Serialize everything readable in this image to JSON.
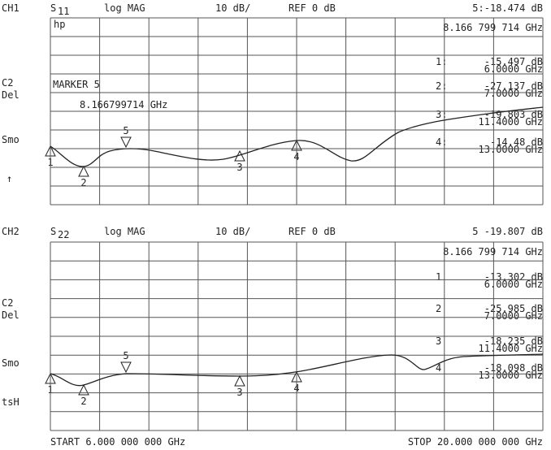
{
  "channels": [
    {
      "channel": "CH1",
      "param": "S",
      "param_sub": "11",
      "format": "log MAG",
      "scale": "10 dB/",
      "ref": "REF 0 dB",
      "active_marker": "5:-18.474 dB",
      "active_freq": "8.166 799 714 GHz",
      "logo": "hp",
      "side_labels": [
        "C2",
        "Del",
        "Smo",
        "↑"
      ],
      "marker_title": "MARKER 5",
      "marker_freq": "8.166799714 GHz",
      "readouts": [
        {
          "index": "1:",
          "value": "-15.497 dB",
          "freq": "6.0000 GHz"
        },
        {
          "index": "2:",
          "value": "-27.137 dB",
          "freq": "7.0000 GHz"
        },
        {
          "index": "3:",
          "value": "-19.803 dB",
          "freq": "11.4000 GHz"
        },
        {
          "index": "4:",
          "value": "-14.48 dB",
          "freq": "13.0000 GHz"
        }
      ],
      "trace_markers": [
        "1",
        "2",
        "3",
        "4",
        "5"
      ]
    },
    {
      "channel": "CH2",
      "param": "S",
      "param_sub": "22",
      "format": "log MAG",
      "scale": "10 dB/",
      "ref": "REF 0 dB",
      "active_marker": "5 -19.807 dB",
      "active_freq": "8.166 799 714 GHz",
      "side_labels": [
        "C2",
        "Del",
        "Smo",
        "tsH"
      ],
      "readouts": [
        {
          "index": "1",
          "value": "-13.302 dB",
          "freq": "6.0000 GHz"
        },
        {
          "index": "2",
          "value": "-25.985 dB",
          "freq": "7.0000 GHz"
        },
        {
          "index": "3",
          "value": "-18.235 dB",
          "freq": "11.4000 GHz"
        },
        {
          "index": "4",
          "value": "-18.098 dB",
          "freq": "13.0000 GHz"
        }
      ],
      "trace_markers": [
        "1",
        "2",
        "3",
        "4",
        "5"
      ]
    }
  ],
  "footer": {
    "start": "START  6.000 000 000 GHz",
    "stop": "STOP 20.000 000 000 GHz"
  }
}
